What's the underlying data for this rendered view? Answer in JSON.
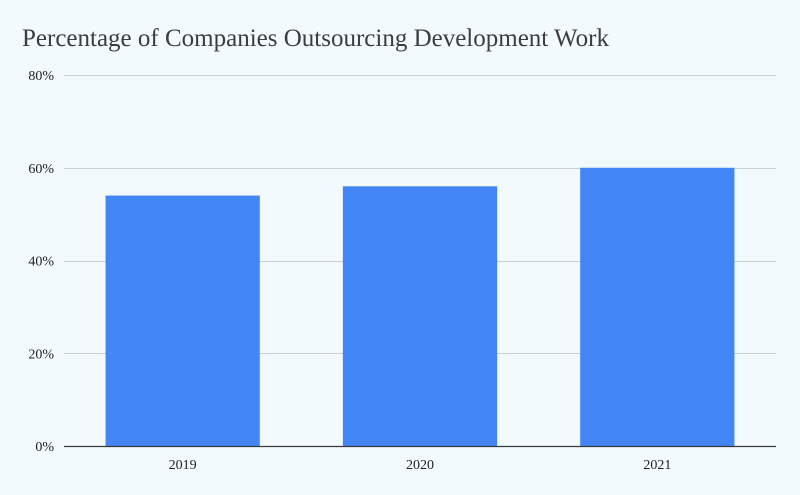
{
  "chart_data": {
    "type": "bar",
    "title": "Percentage of Companies Outsourcing Development Work",
    "xlabel": "",
    "ylabel": "",
    "categories": [
      "2019",
      "2020",
      "2021"
    ],
    "values": [
      54,
      56,
      60
    ],
    "value_unit": "%",
    "ylim": [
      0,
      80
    ],
    "y_ticks": [
      0,
      20,
      40,
      60,
      80
    ],
    "y_tick_labels": [
      "0%",
      "20%",
      "40%",
      "60%",
      "80%"
    ],
    "grid": true,
    "legend": "none"
  },
  "colors": {
    "background": "#f2fafe",
    "bar": "#4285f4",
    "gridline": "#c9cfd4",
    "axis": "#3a3a3a",
    "title": "#3d3d3d",
    "tick_text": "#222222"
  }
}
